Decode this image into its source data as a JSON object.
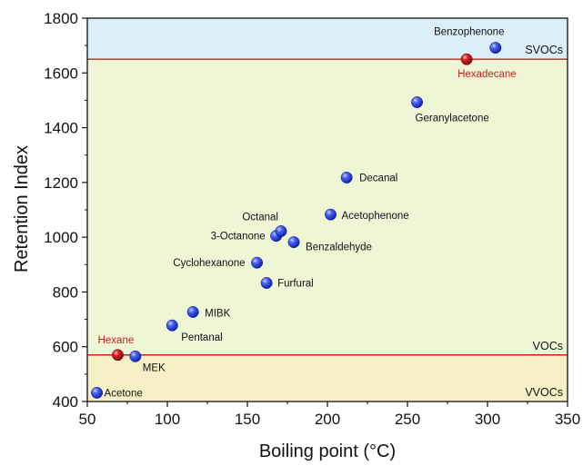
{
  "chart_data": {
    "type": "scatter",
    "title": "",
    "xlabel": "Boiling point (°C)",
    "ylabel": "Retention Index",
    "xlim": [
      50,
      350
    ],
    "ylim": [
      400,
      1800
    ],
    "xticks": [
      50,
      100,
      150,
      200,
      250,
      300,
      350
    ],
    "yticks": [
      400,
      600,
      800,
      1000,
      1200,
      1400,
      1600,
      1800
    ],
    "grid": false,
    "bands": [
      {
        "label": "VVOCs",
        "from": 400,
        "to": 570,
        "color": "#f7efc6"
      },
      {
        "label": "VOCs",
        "from": 570,
        "to": 1650,
        "color": "#eef6d6"
      },
      {
        "label": "SVOCs",
        "from": 1650,
        "to": 1800,
        "color": "#dbeffa"
      }
    ],
    "threshold_lines": [
      {
        "y": 570,
        "color": "#cc1d1d"
      },
      {
        "y": 1650,
        "color": "#cc1d1d"
      }
    ],
    "points": [
      {
        "name": "Acetone",
        "x": 56,
        "y": 432,
        "reference": false
      },
      {
        "name": "MEK",
        "x": 80,
        "y": 565,
        "reference": false
      },
      {
        "name": "Hexane",
        "x": 69,
        "y": 570,
        "reference": true
      },
      {
        "name": "Pentanal",
        "x": 103,
        "y": 678,
        "reference": false
      },
      {
        "name": "MIBK",
        "x": 116,
        "y": 727,
        "reference": false
      },
      {
        "name": "Furfural",
        "x": 162,
        "y": 833,
        "reference": false
      },
      {
        "name": "Cyclohexanone",
        "x": 156,
        "y": 907,
        "reference": false
      },
      {
        "name": "3-Octanone",
        "x": 168,
        "y": 1005,
        "reference": false
      },
      {
        "name": "Octanal",
        "x": 171,
        "y": 1022,
        "reference": false
      },
      {
        "name": "Benzaldehyde",
        "x": 179,
        "y": 982,
        "reference": false
      },
      {
        "name": "Acetophenone",
        "x": 202,
        "y": 1083,
        "reference": false
      },
      {
        "name": "Decanal",
        "x": 212,
        "y": 1218,
        "reference": false
      },
      {
        "name": "Geranylacetone",
        "x": 256,
        "y": 1493,
        "reference": false
      },
      {
        "name": "Hexadecane",
        "x": 287,
        "y": 1650,
        "reference": true
      },
      {
        "name": "Benzophenone",
        "x": 305,
        "y": 1692,
        "reference": false
      }
    ],
    "colors": {
      "normal": "#2f48e8",
      "reference": "#c0191b"
    }
  }
}
